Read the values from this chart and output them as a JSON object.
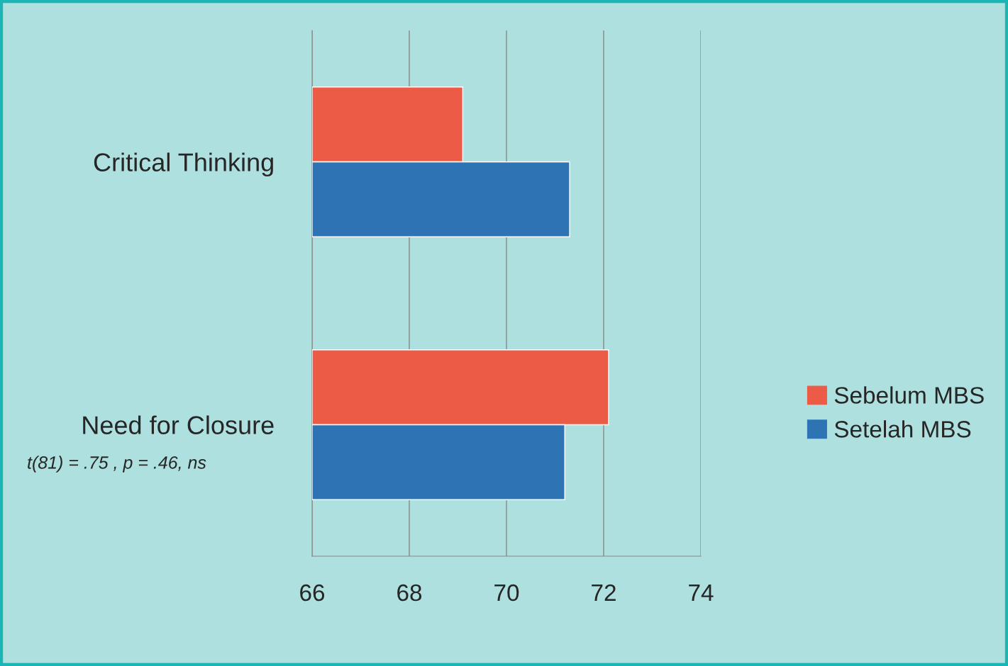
{
  "chart_data": {
    "type": "bar",
    "orientation": "horizontal",
    "categories": [
      "Critical Thinking",
      "Need for Closure"
    ],
    "series": [
      {
        "name": "Sebelum MBS",
        "color": "#ec5b45",
        "values": [
          69.1,
          72.1
        ]
      },
      {
        "name": "Setelah MBS",
        "color": "#2e74b5",
        "values": [
          71.3,
          71.2
        ]
      }
    ],
    "xlim": [
      66,
      74
    ],
    "xticks": [
      66,
      68,
      70,
      72,
      74
    ],
    "grid": "x",
    "legend": "right",
    "annotations": [
      "t(81) = .75 , p = .46, ns"
    ]
  }
}
